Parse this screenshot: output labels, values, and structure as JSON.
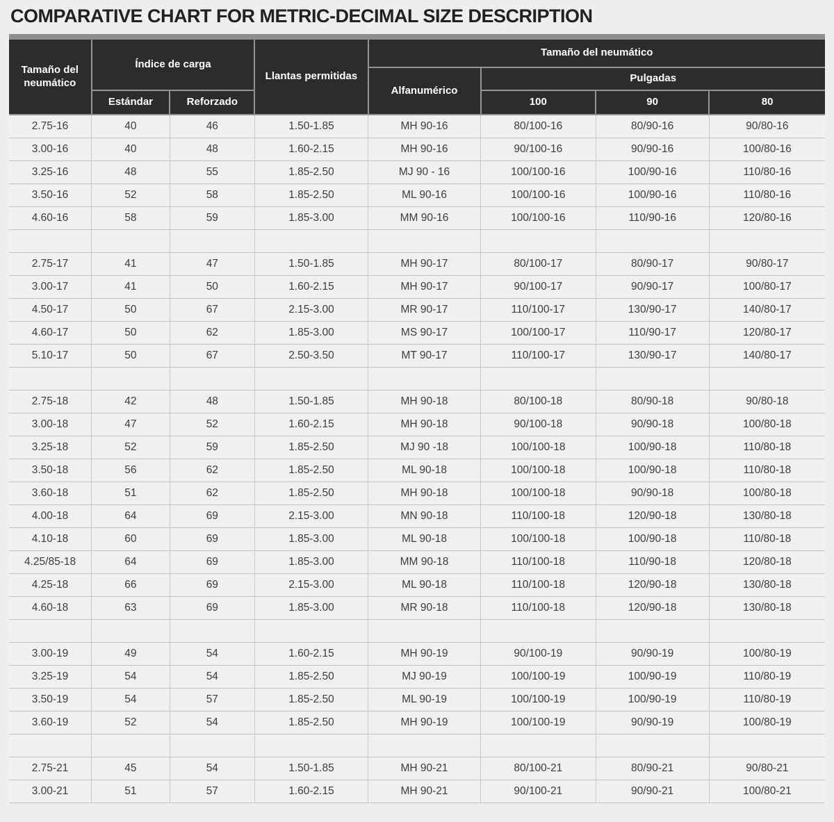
{
  "title": "COMPARATIVE CHART FOR METRIC-DECIMAL SIZE DESCRIPTION",
  "colors": {
    "page_background": "#efeeee",
    "header_background": "#2d2b2c",
    "header_text": "#ffffff",
    "topbar_gray": "#8f8f8f",
    "body_cell_background": "#f1f0ef",
    "body_text": "#3c3c3c",
    "grid_line": "#c3c2c1"
  },
  "table": {
    "headers": {
      "tire_size_left": "Tamaño del neumático",
      "load_index": "Índice de carga",
      "standard": "Estándar",
      "reinforced": "Reforzado",
      "rims": "Llantas permitidas",
      "tire_size_right": "Tamaño del neumático",
      "alphanumeric": "Alfanumérico",
      "inches": "Pulgadas",
      "inch_100": "100",
      "inch_90": "90",
      "inch_80": "80"
    },
    "rows": [
      [
        "2.75-16",
        "40",
        "46",
        "1.50-1.85",
        "MH 90-16",
        "80/100-16",
        "80/90-16",
        "90/80-16"
      ],
      [
        "3.00-16",
        "40",
        "48",
        "1.60-2.15",
        "MH 90-16",
        "90/100-16",
        "90/90-16",
        "100/80-16"
      ],
      [
        "3.25-16",
        "48",
        "55",
        "1.85-2.50",
        "MJ 90 - 16",
        "100/100-16",
        "100/90-16",
        "110/80-16"
      ],
      [
        "3.50-16",
        "52",
        "58",
        "1.85-2.50",
        "ML 90-16",
        "100/100-16",
        "100/90-16",
        "110/80-16"
      ],
      [
        "4.60-16",
        "58",
        "59",
        "1.85-3.00",
        "MM 90-16",
        "100/100-16",
        "110/90-16",
        "120/80-16"
      ],
      [
        "",
        "",
        "",
        "",
        "",
        "",
        "",
        ""
      ],
      [
        "2.75-17",
        "41",
        "47",
        "1.50-1.85",
        "MH 90-17",
        "80/100-17",
        "80/90-17",
        "90/80-17"
      ],
      [
        "3.00-17",
        "41",
        "50",
        "1.60-2.15",
        "MH 90-17",
        "90/100-17",
        "90/90-17",
        "100/80-17"
      ],
      [
        "4.50-17",
        "50",
        "67",
        "2.15-3.00",
        "MR 90-17",
        "110/100-17",
        "130/90-17",
        "140/80-17"
      ],
      [
        "4.60-17",
        "50",
        "62",
        "1.85-3.00",
        "MS 90-17",
        "100/100-17",
        "110/90-17",
        "120/80-17"
      ],
      [
        "5.10-17",
        "50",
        "67",
        "2.50-3.50",
        "MT 90-17",
        "110/100-17",
        "130/90-17",
        "140/80-17"
      ],
      [
        "",
        "",
        "",
        "",
        "",
        "",
        "",
        ""
      ],
      [
        "2.75-18",
        "42",
        "48",
        "1.50-1.85",
        "MH 90-18",
        "80/100-18",
        "80/90-18",
        "90/80-18"
      ],
      [
        "3.00-18",
        "47",
        "52",
        "1.60-2.15",
        "MH 90-18",
        "90/100-18",
        "90/90-18",
        "100/80-18"
      ],
      [
        "3.25-18",
        "52",
        "59",
        "1.85-2.50",
        "MJ 90 -18",
        "100/100-18",
        "100/90-18",
        "110/80-18"
      ],
      [
        "3.50-18",
        "56",
        "62",
        "1.85-2.50",
        "ML 90-18",
        "100/100-18",
        "100/90-18",
        "110/80-18"
      ],
      [
        "3.60-18",
        "51",
        "62",
        "1.85-2.50",
        "MH 90-18",
        "100/100-18",
        "90/90-18",
        "100/80-18"
      ],
      [
        "4.00-18",
        "64",
        "69",
        "2.15-3.00",
        "MN 90-18",
        "110/100-18",
        "120/90-18",
        "130/80-18"
      ],
      [
        "4.10-18",
        "60",
        "69",
        "1.85-3.00",
        "ML 90-18",
        "100/100-18",
        "100/90-18",
        "110/80-18"
      ],
      [
        "4.25/85-18",
        "64",
        "69",
        "1.85-3.00",
        "MM 90-18",
        "110/100-18",
        "110/90-18",
        "120/80-18"
      ],
      [
        "4.25-18",
        "66",
        "69",
        "2.15-3.00",
        "ML 90-18",
        "110/100-18",
        "120/90-18",
        "130/80-18"
      ],
      [
        "4.60-18",
        "63",
        "69",
        "1.85-3.00",
        "MR 90-18",
        "110/100-18",
        "120/90-18",
        "130/80-18"
      ],
      [
        "",
        "",
        "",
        "",
        "",
        "",
        "",
        ""
      ],
      [
        "3.00-19",
        "49",
        "54",
        "1.60-2.15",
        "MH 90-19",
        "90/100-19",
        "90/90-19",
        "100/80-19"
      ],
      [
        "3.25-19",
        "54",
        "54",
        "1.85-2.50",
        "MJ 90-19",
        "100/100-19",
        "100/90-19",
        "110/80-19"
      ],
      [
        "3.50-19",
        "54",
        "57",
        "1.85-2.50",
        "ML 90-19",
        "100/100-19",
        "100/90-19",
        "110/80-19"
      ],
      [
        "3.60-19",
        "52",
        "54",
        "1.85-2.50",
        "MH 90-19",
        "100/100-19",
        "90/90-19",
        "100/80-19"
      ],
      [
        "",
        "",
        "",
        "",
        "",
        "",
        "",
        ""
      ],
      [
        "2.75-21",
        "45",
        "54",
        "1.50-1.85",
        "MH 90-21",
        "80/100-21",
        "80/90-21",
        "90/80-21"
      ],
      [
        "3.00-21",
        "51",
        "57",
        "1.60-2.15",
        "MH 90-21",
        "90/100-21",
        "90/90-21",
        "100/80-21"
      ]
    ]
  }
}
